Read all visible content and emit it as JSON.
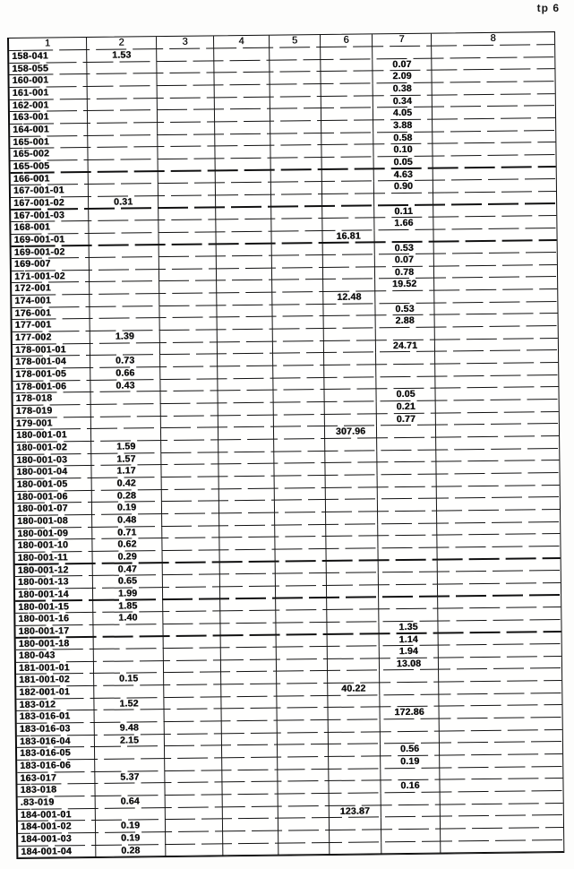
{
  "page_label": "tp 6",
  "table": {
    "columns": [
      "1",
      "2",
      "3",
      "4",
      "5",
      "6",
      "7",
      "8"
    ],
    "rows": [
      {
        "id": "158-041",
        "c2": "1.53"
      },
      {
        "id": "158-055",
        "c7": "0.07"
      },
      {
        "id": "160-001",
        "c7": "2.09"
      },
      {
        "id": "161-001",
        "c7": "0.38"
      },
      {
        "id": "162-001",
        "c7": "0.34"
      },
      {
        "id": "163-001",
        "c7": "4.05"
      },
      {
        "id": "164-001",
        "c7": "3.88"
      },
      {
        "id": "165-001",
        "c7": "0.58"
      },
      {
        "id": "165-002",
        "c7": "0.10"
      },
      {
        "id": "165-005",
        "c7": "0.05"
      },
      {
        "id": "166-001",
        "c7": "4.63"
      },
      {
        "id": "167-001-01",
        "c7": "0.90"
      },
      {
        "id": "167-001-02",
        "c2": "0.31"
      },
      {
        "id": "167-001-03",
        "c7": "0.11"
      },
      {
        "id": "168-001",
        "c7": "1.66"
      },
      {
        "id": "169-001-01",
        "c6": "16.81"
      },
      {
        "id": "169-001-02",
        "c7": "0.53"
      },
      {
        "id": "169-007",
        "c7": "0.07"
      },
      {
        "id": "171-001-02",
        "c7": "0.78"
      },
      {
        "id": "172-001",
        "c7": "19.52"
      },
      {
        "id": "174-001",
        "c6": "12.48"
      },
      {
        "id": "176-001",
        "c7": "0.53"
      },
      {
        "id": "177-001",
        "c7": "2.88"
      },
      {
        "id": "177-002",
        "c2": "1.39"
      },
      {
        "id": "178-001-01",
        "c7": "24.71"
      },
      {
        "id": "178-001-04",
        "c2": "0.73"
      },
      {
        "id": "178-001-05",
        "c2": "0.66"
      },
      {
        "id": "178-001-06",
        "c2": "0.43"
      },
      {
        "id": "178-018",
        "c7": "0.05"
      },
      {
        "id": "178-019",
        "c7": "0.21"
      },
      {
        "id": "179-001",
        "c7": "0.77"
      },
      {
        "id": "180-001-01",
        "c6": "307.96"
      },
      {
        "id": "180-001-02",
        "c2": "1.59"
      },
      {
        "id": "180-001-03",
        "c2": "1.57"
      },
      {
        "id": "180-001-04",
        "c2": "1.17"
      },
      {
        "id": "180-001-05",
        "c2": "0.42"
      },
      {
        "id": "180-001-06",
        "c2": "0.28"
      },
      {
        "id": "180-001-07",
        "c2": "0.19"
      },
      {
        "id": "180-001-08",
        "c2": "0.48"
      },
      {
        "id": "180-001-09",
        "c2": "0.71"
      },
      {
        "id": "180-001-10",
        "c2": "0.62"
      },
      {
        "id": "180-001-11",
        "c2": "0.29"
      },
      {
        "id": "180-001-12",
        "c2": "0.47"
      },
      {
        "id": "180-001-13",
        "c2": "0.65"
      },
      {
        "id": "180-001-14",
        "c2": "1.99"
      },
      {
        "id": "180-001-15",
        "c2": "1.85"
      },
      {
        "id": "180-001-16",
        "c2": "1.40"
      },
      {
        "id": "180-001-17",
        "c7": "1.35"
      },
      {
        "id": "180-001-18",
        "c7": "1.14"
      },
      {
        "id": "180-043",
        "c7": "1.94"
      },
      {
        "id": "181-001-01",
        "c7": "13.08"
      },
      {
        "id": "181-001-02",
        "c2": "0.15"
      },
      {
        "id": "182-001-01",
        "c6": "40.22"
      },
      {
        "id": "183-012",
        "c2": "1.52"
      },
      {
        "id": "183-016-01",
        "c7": "172.86"
      },
      {
        "id": "183-016-03",
        "c2": "9.48"
      },
      {
        "id": "183-016-04",
        "c2": "2.15"
      },
      {
        "id": "183-016-05",
        "c7": "0.56"
      },
      {
        "id": "183-016-06",
        "c7": "0.19"
      },
      {
        "id": "163-017",
        "c2": "5.37"
      },
      {
        "id": "183-018",
        "c7": "0.16"
      },
      {
        "id": ".83-019",
        "c2": "0.64"
      },
      {
        "id": "184-001-01",
        "c6": "123.87"
      },
      {
        "id": "184-001-02",
        "c2": "0.19"
      },
      {
        "id": "184-001-03",
        "c2": "0.19"
      },
      {
        "id": "184-001-04",
        "c2": "0.28"
      }
    ]
  }
}
